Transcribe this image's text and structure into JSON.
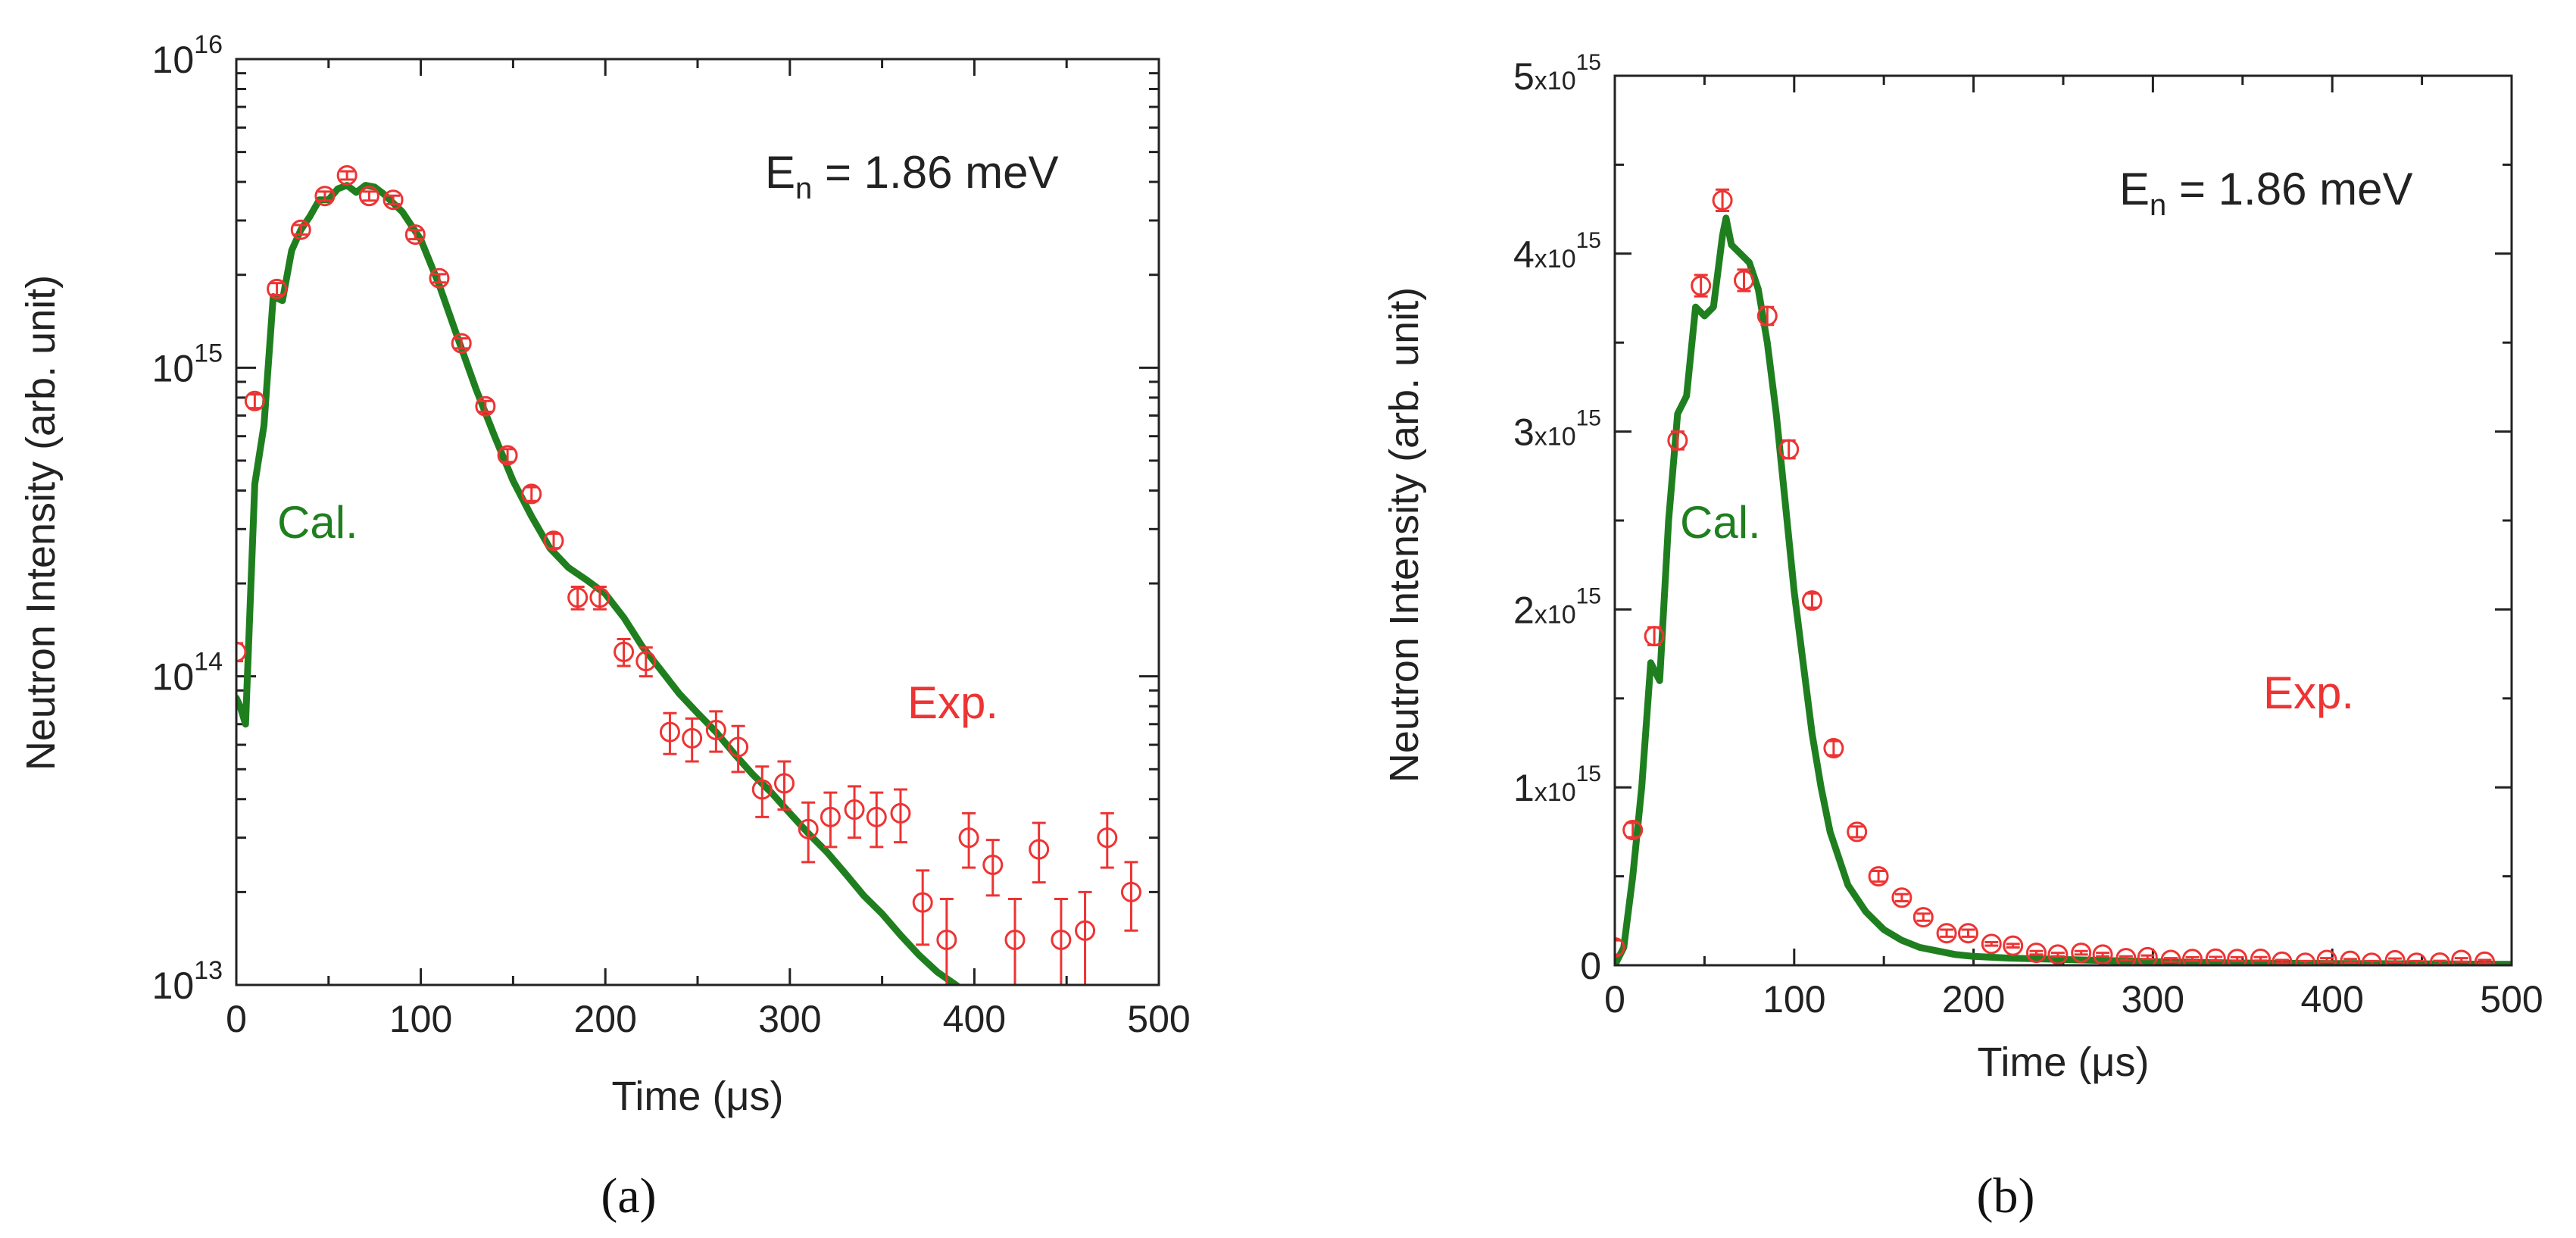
{
  "colors": {
    "calc": "#1f7f1f",
    "exp": "#ee3333",
    "axis": "#222222"
  },
  "chart_data": [
    {
      "type": "line",
      "panel_label": "(a)",
      "xlabel": "Time (μs)",
      "ylabel": "Neutron Intensity (arb. unit)",
      "xlim": [
        0,
        500
      ],
      "ylim": [
        10000000000000.0,
        1e+16
      ],
      "yscale": "log",
      "xticks": [
        "0",
        "100",
        "200",
        "300",
        "400",
        "500"
      ],
      "yticks": [
        {
          "base": "10",
          "exp": "13"
        },
        {
          "base": "10",
          "exp": "14"
        },
        {
          "base": "10",
          "exp": "15"
        },
        {
          "base": "10",
          "exp": "16"
        }
      ],
      "annotation": {
        "main": "E",
        "sub": "n",
        "rest": " = 1.86 meV"
      },
      "label_cal": "Cal.",
      "label_exp": "Exp.",
      "series": [
        {
          "name": "Cal.",
          "style": "line",
          "x": [
            0,
            2,
            5,
            10,
            15,
            20,
            25,
            30,
            35,
            40,
            45,
            50,
            55,
            60,
            65,
            70,
            75,
            80,
            90,
            100,
            110,
            120,
            130,
            140,
            150,
            160,
            170,
            180,
            190,
            200,
            210,
            220,
            230,
            240,
            250,
            260,
            270,
            280,
            290,
            300,
            310,
            320,
            330,
            340,
            350,
            360,
            370,
            380,
            390,
            395
          ],
          "y": [
            85000000000000.0,
            80000000000000.0,
            70000000000000.0,
            420000000000000.0,
            650000000000000.0,
            1700000000000000.0,
            1650000000000000.0,
            2400000000000000.0,
            2800000000000000.0,
            3100000000000000.0,
            3500000000000000.0,
            3500000000000000.0,
            3800000000000000.0,
            3900000000000000.0,
            3700000000000000.0,
            3900000000000000.0,
            3850000000000000.0,
            3650000000000000.0,
            3200000000000000.0,
            2600000000000000.0,
            1850000000000000.0,
            1250000000000000.0,
            850000000000000.0,
            600000000000000.0,
            430000000000000.0,
            330000000000000.0,
            260000000000000.0,
            225000000000000.0,
            205000000000000.0,
            185000000000000.0,
            155000000000000.0,
            125000000000000.0,
            105000000000000.0,
            88000000000000.0,
            76000000000000.0,
            66000000000000.0,
            56000000000000.0,
            48000000000000.0,
            42000000000000.0,
            36000000000000.0,
            31000000000000.0,
            27000000000000.0,
            23000000000000.0,
            19500000000000.0,
            17000000000000.0,
            14500000000000.0,
            12500000000000.0,
            11000000000000.0,
            10000000000000.0,
            9500000000000.0
          ]
        },
        {
          "name": "Exp.",
          "style": "points",
          "x": [
            0,
            10,
            22,
            35,
            48,
            60,
            72,
            85,
            97,
            110,
            122,
            135,
            147,
            160,
            172,
            185,
            197,
            210,
            222,
            235,
            247,
            260,
            272,
            285,
            297,
            310,
            322,
            335,
            347,
            360,
            372,
            385,
            397,
            410,
            422,
            435,
            447,
            460,
            472,
            485
          ],
          "y": [
            120000000000000.0,
            780000000000000.0,
            1800000000000000.0,
            2800000000000000.0,
            3600000000000000.0,
            4200000000000000.0,
            3600000000000000.0,
            3500000000000000.0,
            2700000000000000.0,
            1950000000000000.0,
            1200000000000000.0,
            750000000000000.0,
            520000000000000.0,
            390000000000000.0,
            275000000000000.0,
            180000000000000.0,
            180000000000000.0,
            120000000000000.0,
            112000000000000.0,
            66000000000000.0,
            63000000000000.0,
            67000000000000.0,
            59000000000000.0,
            43000000000000.0,
            45000000000000.0,
            32000000000000.0,
            35000000000000.0,
            37000000000000.0,
            35000000000000.0,
            36000000000000.0,
            18500000000000.0,
            14000000000000.0,
            30000000000000.0,
            24500000000000.0,
            14000000000000.0,
            27500000000000.0,
            14000000000000.0,
            15000000000000.0,
            30000000000000.0,
            20000000000000.0
          ],
          "err": [
            8000000000000.0,
            40000000000000.0,
            80000000000000.0,
            100000000000000.0,
            120000000000000.0,
            130000000000000.0,
            120000000000000.0,
            110000000000000.0,
            90000000000000.0,
            60000000000000.0,
            45000000000000.0,
            30000000000000.0,
            25000000000000.0,
            20000000000000.0,
            15000000000000.0,
            15000000000000.0,
            15000000000000.0,
            12000000000000.0,
            12000000000000.0,
            10000000000000.0,
            10000000000000.0,
            10000000000000.0,
            10000000000000.0,
            8000000000000.0,
            8000000000000.0,
            7000000000000.0,
            7000000000000.0,
            7000000000000.0,
            7000000000000.0,
            7000000000000.0,
            5000000000000.0,
            5000000000000.0,
            6000000000000.0,
            5000000000000.0,
            5000000000000.0,
            6000000000000.0,
            5000000000000.0,
            5000000000000.0,
            6000000000000.0,
            5000000000000.0
          ]
        }
      ]
    },
    {
      "type": "line",
      "panel_label": "(b)",
      "xlabel": "Time (μs)",
      "ylabel": "Neutron Intensity (arb. unit)",
      "xlim": [
        0,
        500
      ],
      "ylim": [
        0,
        5000000000000000.0
      ],
      "yscale": "linear",
      "xticks": [
        "0",
        "100",
        "200",
        "300",
        "400",
        "500"
      ],
      "yticks": [
        {
          "text": "0"
        },
        {
          "base": "1",
          "mid": "x10",
          "exp": "15"
        },
        {
          "base": "2",
          "mid": "x10",
          "exp": "15"
        },
        {
          "base": "3",
          "mid": "x10",
          "exp": "15"
        },
        {
          "base": "4",
          "mid": "x10",
          "exp": "15"
        },
        {
          "base": "5",
          "mid": "x10",
          "exp": "15"
        }
      ],
      "annotation": {
        "main": "E",
        "sub": "n",
        "rest": " = 1.86 meV"
      },
      "label_cal": "Cal.",
      "label_exp": "Exp.",
      "series": [
        {
          "name": "Cal.",
          "style": "line",
          "x": [
            0,
            5,
            10,
            15,
            20,
            25,
            30,
            35,
            40,
            45,
            50,
            55,
            60,
            62,
            65,
            70,
            75,
            80,
            85,
            90,
            95,
            100,
            105,
            110,
            115,
            120,
            125,
            130,
            140,
            150,
            160,
            170,
            180,
            190,
            200,
            220,
            240,
            260,
            280,
            300,
            330,
            360,
            400,
            450,
            500
          ],
          "y": [
            0,
            100000000000000.0,
            500000000000000.0,
            1000000000000000.0,
            1700000000000000.0,
            1600000000000000.0,
            2500000000000000.0,
            3100000000000000.0,
            3200000000000000.0,
            3700000000000000.0,
            3650000000000000.0,
            3700000000000000.0,
            4100000000000000.0,
            4200000000000000.0,
            4050000000000000.0,
            4000000000000000.0,
            3950000000000000.0,
            3800000000000000.0,
            3500000000000000.0,
            3100000000000000.0,
            2600000000000000.0,
            2100000000000000.0,
            1700000000000000.0,
            1300000000000000.0,
            1000000000000000.0,
            750000000000000.0,
            600000000000000.0,
            450000000000000.0,
            300000000000000.0,
            200000000000000.0,
            140000000000000.0,
            100000000000000.0,
            80000000000000.0,
            60000000000000.0,
            50000000000000.0,
            40000000000000.0,
            35000000000000.0,
            30000000000000.0,
            25000000000000.0,
            20000000000000.0,
            15000000000000.0,
            12000000000000.0,
            10000000000000.0,
            8000000000000.0,
            5000000000000.0
          ]
        },
        {
          "name": "Exp.",
          "style": "points",
          "x": [
            0,
            10,
            22,
            35,
            48,
            60,
            72,
            85,
            97,
            110,
            122,
            135,
            147,
            160,
            172,
            185,
            197,
            210,
            222,
            235,
            247,
            260,
            272,
            285,
            297,
            310,
            322,
            335,
            347,
            360,
            372,
            385,
            397,
            410,
            422,
            435,
            447,
            460,
            472,
            485
          ],
          "y": [
            100000000000000.0,
            760000000000000.0,
            1850000000000000.0,
            2950000000000000.0,
            3820000000000000.0,
            4300000000000000.0,
            3850000000000000.0,
            3650000000000000.0,
            2900000000000000.0,
            2050000000000000.0,
            1220000000000000.0,
            750000000000000.0,
            500000000000000.0,
            380000000000000.0,
            270000000000000.0,
            180000000000000.0,
            180000000000000.0,
            120000000000000.0,
            110000000000000.0,
            70000000000000.0,
            60000000000000.0,
            70000000000000.0,
            60000000000000.0,
            40000000000000.0,
            45000000000000.0,
            30000000000000.0,
            35000000000000.0,
            37000000000000.0,
            35000000000000.0,
            36000000000000.0,
            20000000000000.0,
            14000000000000.0,
            30000000000000.0,
            25000000000000.0,
            14000000000000.0,
            28000000000000.0,
            14000000000000.0,
            15000000000000.0,
            30000000000000.0,
            20000000000000.0
          ],
          "err": [
            40000000000000.0,
            40000000000000.0,
            50000000000000.0,
            50000000000000.0,
            60000000000000.0,
            60000000000000.0,
            60000000000000.0,
            50000000000000.0,
            50000000000000.0,
            40000000000000.0,
            40000000000000.0,
            30000000000000.0,
            30000000000000.0,
            20000000000000.0,
            20000000000000.0,
            20000000000000.0,
            20000000000000.0,
            10000000000000.0,
            10000000000000.0,
            10000000000000.0,
            10000000000000.0,
            10000000000000.0,
            10000000000000.0,
            10000000000000.0,
            10000000000000.0,
            10000000000000.0,
            10000000000000.0,
            10000000000000.0,
            10000000000000.0,
            10000000000000.0,
            10000000000000.0,
            10000000000000.0,
            10000000000000.0,
            10000000000000.0,
            10000000000000.0,
            10000000000000.0,
            10000000000000.0,
            10000000000000.0,
            10000000000000.0,
            10000000000000.0
          ]
        }
      ]
    }
  ]
}
